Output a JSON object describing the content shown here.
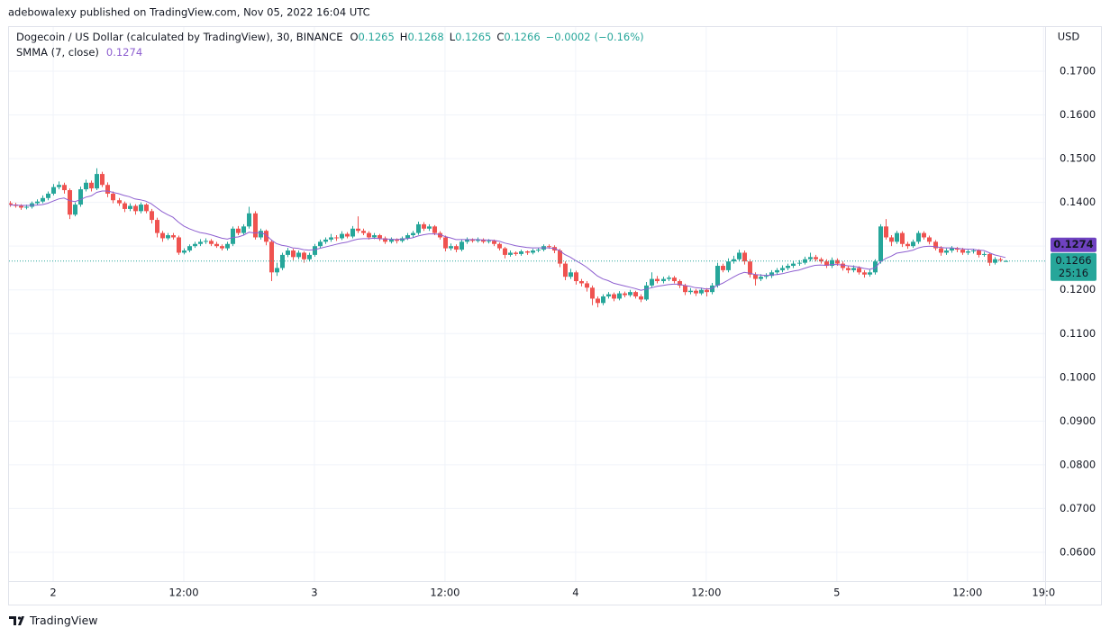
{
  "chart_data": {
    "type": "candlestick",
    "byline": "adebowalexy published on TradingView.com, Nov 05, 2022 16:04 UTC",
    "title": "Dogecoin / US Dollar (calculated by TradingView), 30, BINANCE",
    "ohlc_letters": [
      "O",
      "H",
      "L",
      "C"
    ],
    "change": {
      "value": -0.0002,
      "label": "−0.0002"
    },
    "change_percent": {
      "value": -0.16,
      "label": "(−0.16%)"
    },
    "y_axis_label": "USD",
    "countdown": "25:16",
    "watermark": "TradingView",
    "up_color": "#26a69a",
    "down_color": "#ef5350",
    "grid": true,
    "last_price_line": true,
    "xlim": [
      -4.06,
      91.14
    ],
    "ylim": [
      0.0534,
      0.1801
    ],
    "xticks": [
      {
        "value": 0,
        "label": "2"
      },
      {
        "value": 12,
        "label": "12:00"
      },
      {
        "value": 24,
        "label": "3"
      },
      {
        "value": 36,
        "label": "12:00"
      },
      {
        "value": 48,
        "label": "4"
      },
      {
        "value": 60,
        "label": "12:00"
      },
      {
        "value": 72,
        "label": "5"
      },
      {
        "value": 84,
        "label": "12:00"
      },
      {
        "value": 91,
        "label": "19:0"
      }
    ],
    "yticks": [
      {
        "value": 0.17,
        "label": "0.1700"
      },
      {
        "value": 0.16,
        "label": "0.1600"
      },
      {
        "value": 0.15,
        "label": "0.1500"
      },
      {
        "value": 0.14,
        "label": "0.1400"
      },
      {
        "value": 0.13,
        "label": "0.1300"
      },
      {
        "value": 0.12,
        "label": "0.1200"
      },
      {
        "value": 0.11,
        "label": "0.1100"
      },
      {
        "value": 0.1,
        "label": "0.1000"
      },
      {
        "value": 0.09,
        "label": "0.0900"
      },
      {
        "value": 0.08,
        "label": "0.0800"
      },
      {
        "value": 0.07,
        "label": "0.0700"
      },
      {
        "value": 0.06,
        "label": "0.0600"
      }
    ],
    "x": [
      -4,
      -3.5,
      -3,
      -2.5,
      -2,
      -1.5,
      -1,
      -0.5,
      0,
      0.5,
      1,
      1.5,
      2,
      2.5,
      3,
      3.5,
      4,
      4.5,
      5,
      5.5,
      6,
      6.5,
      7,
      7.5,
      8,
      8.5,
      9,
      9.5,
      10,
      10.5,
      11,
      11.5,
      12,
      12.5,
      13,
      13.5,
      14,
      14.5,
      15,
      15.5,
      16,
      16.5,
      17,
      17.5,
      18,
      18.5,
      19,
      19.5,
      20,
      20.5,
      21,
      21.5,
      22,
      22.5,
      23,
      23.5,
      24,
      24.5,
      25,
      25.5,
      26,
      26.5,
      27,
      27.5,
      28,
      28.5,
      29,
      29.5,
      30,
      30.5,
      31,
      31.5,
      32,
      32.5,
      33,
      33.5,
      34,
      34.5,
      35,
      35.5,
      36,
      36.5,
      37,
      37.5,
      38,
      38.5,
      39,
      39.5,
      40,
      40.5,
      41,
      41.5,
      42,
      42.5,
      43,
      43.5,
      44,
      44.5,
      45,
      45.5,
      46,
      46.5,
      47,
      47.5,
      48,
      48.5,
      49,
      49.5,
      50,
      50.5,
      51,
      51.5,
      52,
      52.5,
      53,
      53.5,
      54,
      54.5,
      55,
      55.5,
      56,
      56.5,
      57,
      57.5,
      58,
      58.5,
      59,
      59.5,
      60,
      60.5,
      61,
      61.5,
      62,
      62.5,
      63,
      63.5,
      64,
      64.5,
      65,
      65.5,
      66,
      66.5,
      67,
      67.5,
      68,
      68.5,
      69,
      69.5,
      70,
      70.5,
      71,
      71.5,
      72,
      72.5,
      73,
      73.5,
      74,
      74.5,
      75,
      75.5,
      76,
      76.5,
      77,
      77.5,
      78,
      78.5,
      79,
      79.5,
      80,
      80.5,
      81,
      81.5,
      82,
      82.5,
      83,
      83.5,
      84,
      84.5,
      85,
      85.5,
      86,
      86.5,
      87,
      87.5
    ],
    "open": [
      0.1398,
      0.1395,
      0.1392,
      0.1388,
      0.139,
      0.1398,
      0.1402,
      0.141,
      0.142,
      0.1435,
      0.144,
      0.1428,
      0.1372,
      0.1395,
      0.143,
      0.1445,
      0.1432,
      0.1465,
      0.144,
      0.142,
      0.1405,
      0.1398,
      0.1385,
      0.1392,
      0.138,
      0.1395,
      0.138,
      0.136,
      0.133,
      0.1318,
      0.1325,
      0.132,
      0.1285,
      0.129,
      0.13,
      0.1305,
      0.131,
      0.1312,
      0.1305,
      0.13,
      0.1295,
      0.1305,
      0.134,
      0.133,
      0.1345,
      0.1375,
      0.132,
      0.1335,
      0.131,
      0.124,
      0.125,
      0.128,
      0.129,
      0.1275,
      0.1285,
      0.127,
      0.128,
      0.13,
      0.131,
      0.1315,
      0.132,
      0.1318,
      0.1328,
      0.1322,
      0.134,
      0.1335,
      0.133,
      0.132,
      0.1325,
      0.1318,
      0.131,
      0.1315,
      0.1312,
      0.1318,
      0.1325,
      0.133,
      0.135,
      0.134,
      0.1345,
      0.133,
      0.132,
      0.1295,
      0.13,
      0.1292,
      0.131,
      0.1315,
      0.1312,
      0.1315,
      0.131,
      0.1312,
      0.1305,
      0.1295,
      0.128,
      0.1285,
      0.1282,
      0.1288,
      0.1285,
      0.129,
      0.1292,
      0.13,
      0.1298,
      0.129,
      0.126,
      0.123,
      0.124,
      0.122,
      0.1215,
      0.1205,
      0.118,
      0.117,
      0.1185,
      0.119,
      0.118,
      0.1192,
      0.1188,
      0.1195,
      0.1185,
      0.1178,
      0.121,
      0.1225,
      0.122,
      0.1225,
      0.1228,
      0.122,
      0.121,
      0.1195,
      0.1198,
      0.1192,
      0.12,
      0.1195,
      0.121,
      0.1255,
      0.1245,
      0.1265,
      0.127,
      0.1285,
      0.1265,
      0.1235,
      0.1225,
      0.123,
      0.1232,
      0.124,
      0.1245,
      0.125,
      0.1255,
      0.126,
      0.1262,
      0.127,
      0.1275,
      0.127,
      0.1265,
      0.1255,
      0.1268,
      0.126,
      0.125,
      0.1245,
      0.125,
      0.124,
      0.1235,
      0.124,
      0.1265,
      0.1345,
      0.132,
      0.131,
      0.133,
      0.1305,
      0.13,
      0.131,
      0.133,
      0.132,
      0.131,
      0.1295,
      0.1285,
      0.129,
      0.1295,
      0.1292,
      0.1285,
      0.1288,
      0.129,
      0.128,
      0.1282,
      0.1262,
      0.127,
      0.1265
    ],
    "high": [
      0.1403,
      0.1399,
      0.1396,
      0.1395,
      0.1402,
      0.1407,
      0.1416,
      0.1425,
      0.1442,
      0.1448,
      0.1445,
      0.1432,
      0.14,
      0.1436,
      0.1452,
      0.145,
      0.1478,
      0.147,
      0.1446,
      0.1425,
      0.141,
      0.1402,
      0.1398,
      0.1396,
      0.14,
      0.1398,
      0.1385,
      0.1365,
      0.1335,
      0.133,
      0.133,
      0.1324,
      0.1295,
      0.1304,
      0.131,
      0.1316,
      0.1318,
      0.1316,
      0.131,
      0.1304,
      0.131,
      0.1345,
      0.1346,
      0.135,
      0.139,
      0.138,
      0.134,
      0.1338,
      0.1315,
      0.1262,
      0.1285,
      0.1296,
      0.1294,
      0.129,
      0.1288,
      0.1285,
      0.1305,
      0.1315,
      0.132,
      0.1328,
      0.1325,
      0.1334,
      0.1332,
      0.1346,
      0.1368,
      0.134,
      0.1334,
      0.133,
      0.1328,
      0.1322,
      0.132,
      0.1318,
      0.1322,
      0.133,
      0.1335,
      0.1356,
      0.1355,
      0.135,
      0.1348,
      0.1334,
      0.1324,
      0.1306,
      0.1304,
      0.1315,
      0.132,
      0.1318,
      0.132,
      0.1318,
      0.1316,
      0.1315,
      0.1308,
      0.1298,
      0.129,
      0.1288,
      0.1292,
      0.129,
      0.1294,
      0.1296,
      0.1304,
      0.1304,
      0.1302,
      0.1294,
      0.1265,
      0.1248,
      0.1244,
      0.1225,
      0.122,
      0.121,
      0.1185,
      0.119,
      0.1195,
      0.1194,
      0.1197,
      0.1196,
      0.12,
      0.1198,
      0.119,
      0.1218,
      0.124,
      0.1232,
      0.123,
      0.1233,
      0.1232,
      0.1224,
      0.1214,
      0.1204,
      0.1202,
      0.1205,
      0.1204,
      0.1216,
      0.1262,
      0.126,
      0.1272,
      0.1278,
      0.1292,
      0.129,
      0.127,
      0.124,
      0.1236,
      0.1238,
      0.1245,
      0.125,
      0.1256,
      0.126,
      0.1266,
      0.1268,
      0.1276,
      0.1285,
      0.128,
      0.1274,
      0.127,
      0.1274,
      0.1272,
      0.1265,
      0.1255,
      0.1256,
      0.1254,
      0.1245,
      0.1246,
      0.127,
      0.135,
      0.1362,
      0.1325,
      0.1335,
      0.1334,
      0.131,
      0.1315,
      0.1335,
      0.1334,
      0.1324,
      0.1314,
      0.13,
      0.1295,
      0.13,
      0.1298,
      0.1296,
      0.1292,
      0.1294,
      0.1293,
      0.1287,
      0.1285,
      0.1275,
      0.1274,
      0.1268
    ],
    "low": [
      0.139,
      0.1388,
      0.1383,
      0.1384,
      0.1386,
      0.1394,
      0.1398,
      0.1405,
      0.1416,
      0.143,
      0.142,
      0.1362,
      0.1368,
      0.139,
      0.1425,
      0.1425,
      0.1428,
      0.1435,
      0.1412,
      0.1398,
      0.1392,
      0.1378,
      0.138,
      0.1372,
      0.1375,
      0.1375,
      0.1352,
      0.132,
      0.131,
      0.1314,
      0.1315,
      0.128,
      0.1281,
      0.1286,
      0.1296,
      0.13,
      0.1305,
      0.13,
      0.1296,
      0.129,
      0.129,
      0.13,
      0.1325,
      0.1326,
      0.134,
      0.1315,
      0.1315,
      0.1302,
      0.122,
      0.1232,
      0.1245,
      0.1275,
      0.1268,
      0.127,
      0.1262,
      0.1265,
      0.1276,
      0.1296,
      0.1305,
      0.131,
      0.1312,
      0.1314,
      0.1318,
      0.1318,
      0.133,
      0.1325,
      0.1315,
      0.1316,
      0.1312,
      0.1305,
      0.1306,
      0.1306,
      0.1308,
      0.1314,
      0.132,
      0.1326,
      0.1335,
      0.1335,
      0.1325,
      0.1315,
      0.1288,
      0.129,
      0.1286,
      0.1288,
      0.1305,
      0.1308,
      0.1308,
      0.1306,
      0.1306,
      0.13,
      0.129,
      0.1272,
      0.1276,
      0.1278,
      0.1278,
      0.128,
      0.1281,
      0.1286,
      0.1288,
      0.1294,
      0.1284,
      0.1252,
      0.1222,
      0.1225,
      0.1212,
      0.1208,
      0.1196,
      0.1165,
      0.116,
      0.1165,
      0.118,
      0.1174,
      0.1176,
      0.1183,
      0.1184,
      0.118,
      0.1172,
      0.1175,
      0.1205,
      0.1215,
      0.1215,
      0.122,
      0.1215,
      0.1204,
      0.1188,
      0.119,
      0.1186,
      0.1188,
      0.1185,
      0.119,
      0.1205,
      0.124,
      0.124,
      0.126,
      0.1265,
      0.1258,
      0.1228,
      0.121,
      0.122,
      0.1225,
      0.1227,
      0.1235,
      0.124,
      0.1245,
      0.125,
      0.1255,
      0.1258,
      0.1265,
      0.1265,
      0.126,
      0.125,
      0.125,
      0.1255,
      0.1244,
      0.1238,
      0.124,
      0.1235,
      0.1228,
      0.123,
      0.1235,
      0.126,
      0.1315,
      0.13,
      0.1305,
      0.1298,
      0.1294,
      0.1296,
      0.1305,
      0.1315,
      0.1304,
      0.129,
      0.1278,
      0.128,
      0.1285,
      0.1286,
      0.128,
      0.128,
      0.1283,
      0.1274,
      0.1276,
      0.1255,
      0.1258,
      0.1264,
      0.1265
    ],
    "close": [
      0.1395,
      0.1392,
      0.1388,
      0.139,
      0.1398,
      0.1402,
      0.141,
      0.142,
      0.1435,
      0.144,
      0.1428,
      0.1372,
      0.1395,
      0.143,
      0.1445,
      0.1432,
      0.1465,
      0.144,
      0.142,
      0.1405,
      0.1398,
      0.1385,
      0.1392,
      0.138,
      0.1395,
      0.138,
      0.136,
      0.133,
      0.1318,
      0.1325,
      0.132,
      0.1285,
      0.129,
      0.13,
      0.1305,
      0.131,
      0.1312,
      0.1305,
      0.13,
      0.1295,
      0.1305,
      0.134,
      0.133,
      0.1345,
      0.1375,
      0.132,
      0.1335,
      0.131,
      0.124,
      0.125,
      0.128,
      0.129,
      0.1275,
      0.1285,
      0.127,
      0.128,
      0.13,
      0.131,
      0.1315,
      0.132,
      0.1318,
      0.1328,
      0.1322,
      0.134,
      0.1335,
      0.133,
      0.132,
      0.1325,
      0.1318,
      0.131,
      0.1315,
      0.1312,
      0.1318,
      0.1325,
      0.133,
      0.135,
      0.134,
      0.1345,
      0.133,
      0.132,
      0.1295,
      0.13,
      0.1292,
      0.131,
      0.1315,
      0.1312,
      0.1315,
      0.131,
      0.1312,
      0.1305,
      0.1295,
      0.128,
      0.1285,
      0.1282,
      0.1288,
      0.1285,
      0.129,
      0.1292,
      0.13,
      0.1298,
      0.129,
      0.126,
      0.123,
      0.124,
      0.122,
      0.1215,
      0.1205,
      0.118,
      0.117,
      0.1185,
      0.119,
      0.118,
      0.1192,
      0.1188,
      0.1195,
      0.1185,
      0.1178,
      0.121,
      0.1225,
      0.122,
      0.1225,
      0.1228,
      0.122,
      0.121,
      0.1195,
      0.1198,
      0.1192,
      0.12,
      0.1195,
      0.121,
      0.1255,
      0.1245,
      0.1265,
      0.127,
      0.1285,
      0.1265,
      0.1235,
      0.1225,
      0.123,
      0.1232,
      0.124,
      0.1245,
      0.125,
      0.1255,
      0.126,
      0.1262,
      0.127,
      0.1275,
      0.127,
      0.1265,
      0.1255,
      0.1268,
      0.126,
      0.125,
      0.1245,
      0.125,
      0.124,
      0.1235,
      0.124,
      0.1265,
      0.1345,
      0.132,
      0.131,
      0.133,
      0.1305,
      0.13,
      0.131,
      0.133,
      0.132,
      0.131,
      0.1295,
      0.1285,
      0.129,
      0.1295,
      0.1292,
      0.1285,
      0.1288,
      0.129,
      0.128,
      0.1282,
      0.1262,
      0.127,
      0.1268,
      0.1266
    ],
    "indicator": {
      "name": "SMMA (7, close)",
      "color": "#8e5fd0",
      "values": [
        0.1394,
        0.1394,
        0.1393,
        0.1393,
        0.1393,
        0.1394,
        0.1395,
        0.1398,
        0.1403,
        0.1408,
        0.141,
        0.1404,
        0.1402,
        0.1406,
        0.1412,
        0.1415,
        0.1423,
        0.1426,
        0.1426,
        0.1423,
        0.142,
        0.1416,
        0.1413,
        0.1408,
        0.1406,
        0.1403,
        0.1397,
        0.1388,
        0.1379,
        0.1372,
        0.1366,
        0.1355,
        0.1346,
        0.134,
        0.1335,
        0.1331,
        0.1329,
        0.1326,
        0.1322,
        0.1318,
        0.1316,
        0.132,
        0.1321,
        0.1325,
        0.1332,
        0.133,
        0.1331,
        0.1327,
        0.1315,
        0.1306,
        0.1302,
        0.13,
        0.1296,
        0.1295,
        0.1292,
        0.1291,
        0.1292,
        0.1295,
        0.1298,
        0.1301,
        0.1304,
        0.1307,
        0.1309,
        0.1313,
        0.1316,
        0.1317,
        0.1317,
        0.1318,
        0.1317,
        0.1316,
        0.1316,
        0.1315,
        0.1316,
        0.1317,
        0.1319,
        0.1323,
        0.1326,
        0.1328,
        0.1328,
        0.1327,
        0.1322,
        0.1319,
        0.1315,
        0.1315,
        0.1315,
        0.1315,
        0.1315,
        0.1314,
        0.1314,
        0.1313,
        0.1311,
        0.1307,
        0.1304,
        0.1301,
        0.1299,
        0.1297,
        0.1296,
        0.1296,
        0.1296,
        0.1296,
        0.1295,
        0.129,
        0.1281,
        0.1275,
        0.1267,
        0.126,
        0.1252,
        0.1242,
        0.1232,
        0.1225,
        0.1221,
        0.1215,
        0.1212,
        0.1209,
        0.1206,
        0.1203,
        0.1199,
        0.1202,
        0.1205,
        0.1208,
        0.121,
        0.1212,
        0.1213,
        0.1213,
        0.121,
        0.1208,
        0.1205,
        0.1204,
        0.1202,
        0.1203,
        0.121,
        0.1215,
        0.1222,
        0.1229,
        0.1236,
        0.124,
        0.1238,
        0.1235,
        0.1234,
        0.1233,
        0.1234,
        0.1235,
        0.1237,
        0.124,
        0.1243,
        0.1245,
        0.1249,
        0.1253,
        0.1256,
        0.1257,
        0.1256,
        0.1258,
        0.1258,
        0.1257,
        0.1255,
        0.1254,
        0.1252,
        0.1249,
        0.1247,
        0.125,
        0.1264,
        0.1272,
        0.1277,
        0.1284,
        0.1286,
        0.1288,
        0.1291,
        0.1296,
        0.1299,
        0.13,
        0.1299,
        0.1297,
        0.1296,
        0.1296,
        0.1295,
        0.1294,
        0.1293,
        0.1293,
        0.1291,
        0.129,
        0.1285,
        0.128,
        0.1277,
        0.1274
      ]
    }
  }
}
